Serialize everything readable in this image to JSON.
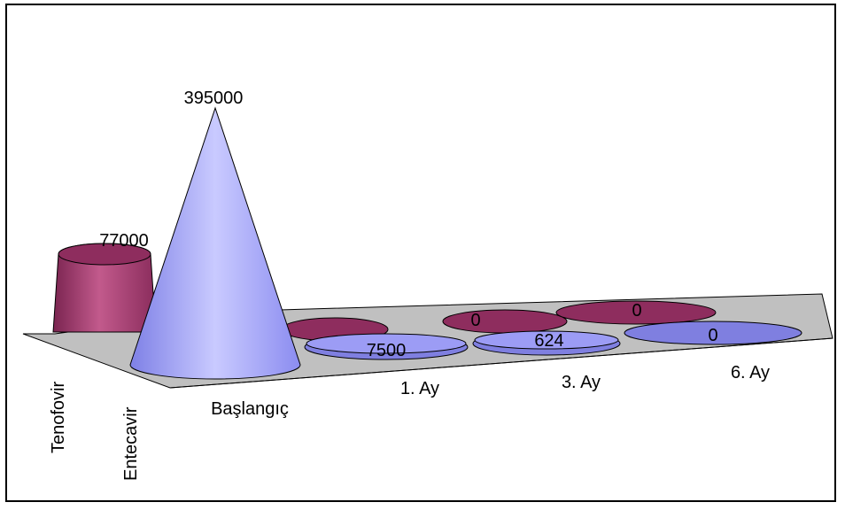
{
  "chart_data": {
    "type": "3d-cone",
    "categories": [
      "Başlangıç",
      "1. Ay",
      "3. Ay",
      "6. Ay"
    ],
    "series": [
      {
        "name": "Tenofovir",
        "values": [
          77000,
          0,
          0,
          0
        ],
        "color": "#993366"
      },
      {
        "name": "Entecavir",
        "values": [
          395000,
          7500,
          624,
          0
        ],
        "color": "#9999FF"
      }
    ],
    "data_labels": {
      "Tenofovir": [
        "77000",
        "",
        "0",
        "0"
      ],
      "Entecavir": [
        "395000",
        "7500",
        "624",
        "0"
      ]
    },
    "title": "",
    "xlabel": "",
    "ylabel": "",
    "ylim": [
      0,
      395000
    ],
    "grid": false,
    "legend": "none"
  }
}
